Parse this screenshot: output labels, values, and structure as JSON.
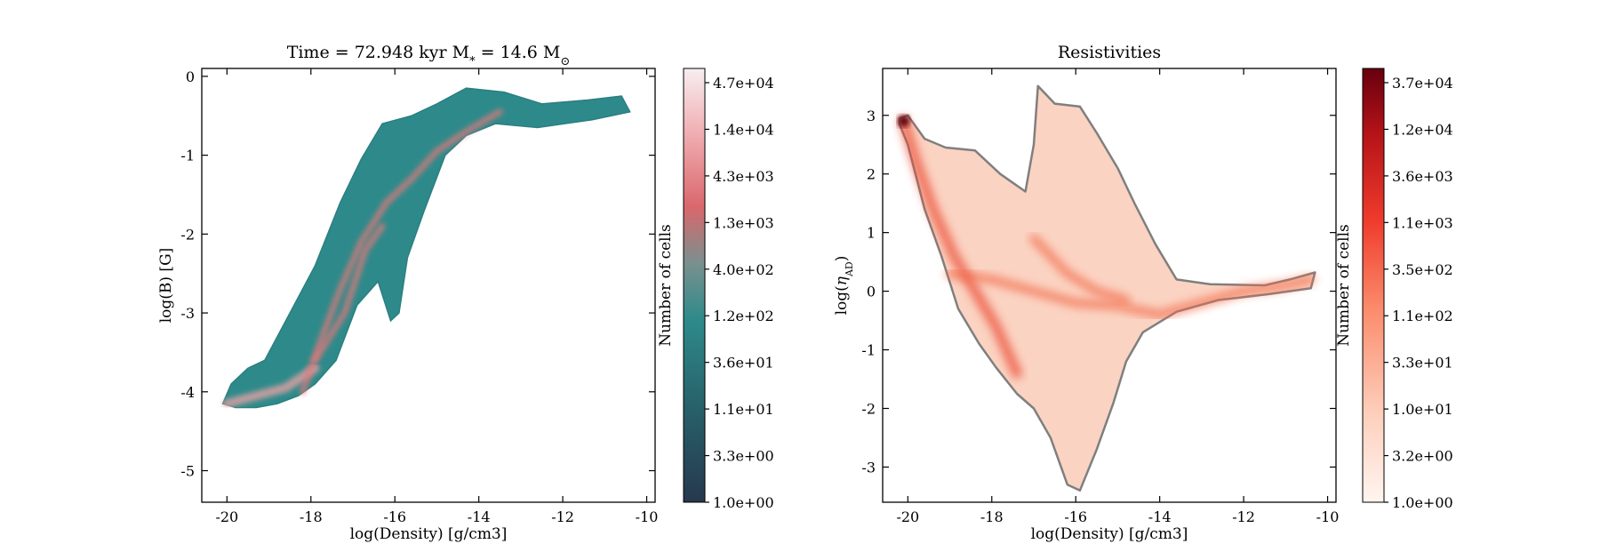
{
  "chart_data": [
    {
      "type": "heatmap",
      "title": "Time = 72.948 kyr    M$_*$ = 14.6 M$_\\odot$",
      "title_parts": {
        "time": "Time = 72.948 kyr",
        "mass_prefix": "M",
        "mass_sub": "*",
        "mass_value": " = 14.6 M",
        "mass_unit_sub": "⊙"
      },
      "xlabel": "log(Density) [g/cm3]",
      "ylabel": "log(B) [G]",
      "xlim": [
        -20.6,
        -9.8
      ],
      "ylim": [
        -5.4,
        0.1
      ],
      "xticks": [
        -20,
        -18,
        -16,
        -14,
        -12,
        -10
      ],
      "yticks": [
        0,
        -1,
        -2,
        -3,
        -4,
        -5
      ],
      "colormap": "teal-to-pink diverging (low #27384d, mid #2e8a8a, high #f5e8ec)",
      "colors": {
        "low": "#27384d",
        "teal": "#2e8a8a",
        "mid_pink": "#e5787a",
        "high": "#f5e8ec"
      },
      "colorbar": {
        "label": "Number of cells",
        "scale": "log",
        "ticks": [
          "4.7e+04",
          "1.4e+04",
          "4.3e+03",
          "1.3e+03",
          "4.0e+02",
          "1.2e+02",
          "3.6e+01",
          "1.1e+01",
          "3.3e+00",
          "1.0e+00"
        ]
      },
      "region_outline": [
        [
          -20.1,
          -4.15
        ],
        [
          -19.9,
          -3.9
        ],
        [
          -19.5,
          -3.7
        ],
        [
          -19.1,
          -3.6
        ],
        [
          -18.8,
          -3.3
        ],
        [
          -18.4,
          -2.9
        ],
        [
          -17.9,
          -2.4
        ],
        [
          -17.3,
          -1.6
        ],
        [
          -16.8,
          -1.05
        ],
        [
          -16.3,
          -0.6
        ],
        [
          -15.6,
          -0.5
        ],
        [
          -15.0,
          -0.35
        ],
        [
          -14.3,
          -0.15
        ],
        [
          -13.4,
          -0.2
        ],
        [
          -12.5,
          -0.35
        ],
        [
          -11.4,
          -0.3
        ],
        [
          -10.6,
          -0.25
        ],
        [
          -10.4,
          -0.45
        ],
        [
          -11.3,
          -0.55
        ],
        [
          -12.6,
          -0.65
        ],
        [
          -13.6,
          -0.6
        ],
        [
          -14.3,
          -0.75
        ],
        [
          -14.8,
          -1.0
        ],
        [
          -15.3,
          -1.7
        ],
        [
          -15.7,
          -2.3
        ],
        [
          -15.9,
          -3.0
        ],
        [
          -16.1,
          -3.1
        ],
        [
          -16.4,
          -2.6
        ],
        [
          -16.9,
          -2.9
        ],
        [
          -17.4,
          -3.6
        ],
        [
          -17.9,
          -3.9
        ],
        [
          -18.3,
          -4.05
        ],
        [
          -18.8,
          -4.15
        ],
        [
          -19.3,
          -4.2
        ],
        [
          -19.8,
          -4.2
        ]
      ],
      "high_density_ridges": [
        {
          "points": [
            [
              -20.0,
              -4.15
            ],
            [
              -19.3,
              -4.05
            ],
            [
              -18.6,
              -3.95
            ],
            [
              -17.9,
              -3.7
            ]
          ],
          "level": "high"
        },
        {
          "points": [
            [
              -18.2,
              -4.0
            ],
            [
              -17.8,
              -3.4
            ],
            [
              -17.3,
              -2.7
            ],
            [
              -16.8,
              -2.1
            ],
            [
              -16.2,
              -1.6
            ],
            [
              -15.6,
              -1.3
            ],
            [
              -15.0,
              -0.95
            ],
            [
              -14.3,
              -0.7
            ],
            [
              -13.5,
              -0.45
            ]
          ],
          "level": "mid"
        },
        {
          "points": [
            [
              -17.9,
              -3.6
            ],
            [
              -17.2,
              -3.0
            ],
            [
              -16.7,
              -2.2
            ],
            [
              -16.3,
              -1.9
            ]
          ],
          "level": "mid"
        }
      ]
    },
    {
      "type": "heatmap",
      "title": "Resistivities",
      "xlabel": "log(Density) [g/cm3]",
      "ylabel": "log(η_AD)",
      "ylabel_parts": {
        "prefix": "log(",
        "symbol": "η",
        "sub": "AD",
        "suffix": ")"
      },
      "xlim": [
        -20.6,
        -9.8
      ],
      "ylim": [
        -3.6,
        3.8
      ],
      "xticks": [
        -20,
        -18,
        -16,
        -14,
        -12,
        -10
      ],
      "yticks": [
        3,
        2,
        1,
        0,
        -1,
        -2,
        -3
      ],
      "colormap": "Reds",
      "colors": {
        "low": "#fde8df",
        "mid": "#f26a4a",
        "high": "#6b0a12",
        "outline": "#7f7f7f"
      },
      "colorbar": {
        "label": "Number of cells",
        "scale": "log",
        "ticks": [
          "3.7e+04",
          "1.2e+04",
          "3.6e+03",
          "1.1e+03",
          "3.5e+02",
          "1.1e+02",
          "3.3e+01",
          "1.0e+01",
          "3.2e+00",
          "1.0e+00"
        ]
      },
      "region_outline": [
        [
          -20.2,
          2.95
        ],
        [
          -20.0,
          3.0
        ],
        [
          -19.6,
          2.6
        ],
        [
          -19.1,
          2.45
        ],
        [
          -18.4,
          2.4
        ],
        [
          -17.8,
          2.0
        ],
        [
          -17.2,
          1.7
        ],
        [
          -17.0,
          2.5
        ],
        [
          -16.9,
          3.5
        ],
        [
          -16.5,
          3.2
        ],
        [
          -15.9,
          3.15
        ],
        [
          -15.5,
          2.7
        ],
        [
          -15.0,
          2.1
        ],
        [
          -14.6,
          1.5
        ],
        [
          -14.1,
          0.8
        ],
        [
          -13.6,
          0.2
        ],
        [
          -12.8,
          0.12
        ],
        [
          -11.5,
          0.1
        ],
        [
          -10.9,
          0.2
        ],
        [
          -10.3,
          0.32
        ],
        [
          -10.4,
          0.05
        ],
        [
          -11.4,
          -0.05
        ],
        [
          -12.6,
          -0.15
        ],
        [
          -13.6,
          -0.35
        ],
        [
          -14.4,
          -0.7
        ],
        [
          -14.8,
          -1.2
        ],
        [
          -15.1,
          -1.9
        ],
        [
          -15.5,
          -2.7
        ],
        [
          -15.9,
          -3.4
        ],
        [
          -16.2,
          -3.3
        ],
        [
          -16.6,
          -2.5
        ],
        [
          -17.0,
          -2.0
        ],
        [
          -17.4,
          -1.75
        ],
        [
          -17.9,
          -1.3
        ],
        [
          -18.3,
          -0.9
        ],
        [
          -18.8,
          -0.3
        ],
        [
          -19.2,
          0.6
        ],
        [
          -19.6,
          1.4
        ],
        [
          -20.0,
          2.5
        ],
        [
          -20.2,
          2.85
        ]
      ],
      "high_density_ridges": [
        {
          "points": [
            [
              -20.1,
              2.9
            ],
            [
              -19.8,
              2.2
            ],
            [
              -19.4,
              1.4
            ],
            [
              -18.9,
              0.6
            ],
            [
              -18.4,
              0.0
            ],
            [
              -17.9,
              -0.6
            ],
            [
              -17.4,
              -1.4
            ]
          ],
          "level": "high"
        },
        {
          "points": [
            [
              -19.0,
              0.3
            ],
            [
              -18.0,
              0.2
            ],
            [
              -17.0,
              0.0
            ],
            [
              -16.0,
              -0.2
            ],
            [
              -15.0,
              -0.25
            ],
            [
              -14.0,
              -0.4
            ],
            [
              -13.0,
              -0.2
            ],
            [
              -12.0,
              0.0
            ],
            [
              -11.0,
              0.1
            ],
            [
              -10.4,
              0.2
            ]
          ],
          "level": "mid"
        },
        {
          "points": [
            [
              -17.0,
              0.9
            ],
            [
              -16.6,
              0.6
            ],
            [
              -16.2,
              0.3
            ],
            [
              -15.5,
              0.0
            ],
            [
              -14.8,
              -0.15
            ]
          ],
          "level": "mid"
        }
      ],
      "peak_point": {
        "x": -20.1,
        "y": 2.9
      }
    }
  ]
}
